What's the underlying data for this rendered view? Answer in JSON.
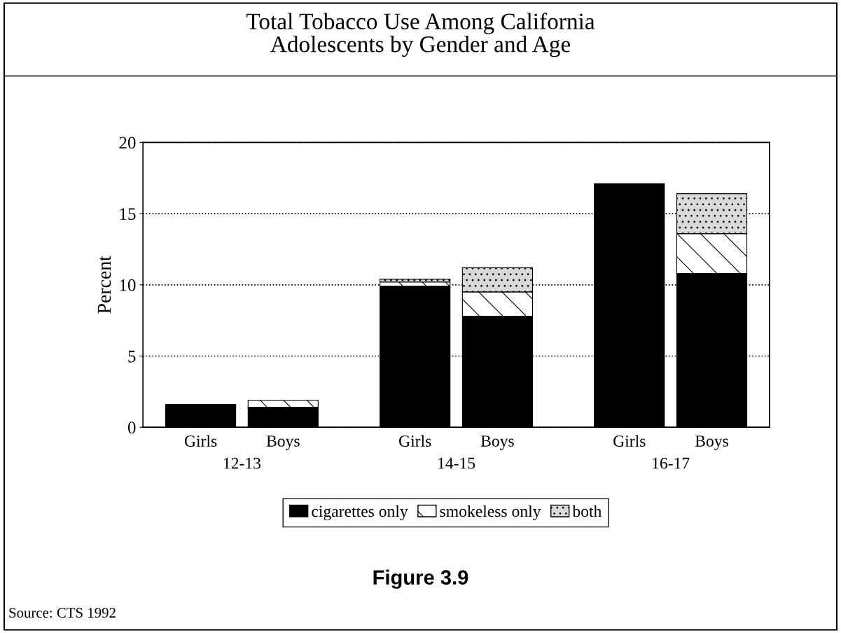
{
  "chart_data": {
    "type": "bar",
    "title": "Total Tobacco Use Among California\nAdolescents by Gender and Age",
    "ylabel": "Percent",
    "categories": [
      "Girls",
      "Boys",
      "Girls",
      "Boys",
      "Girls",
      "Boys"
    ],
    "stacked": true,
    "series": [
      {
        "name": "cigarettes only",
        "color": "#000000",
        "values": [
          1.6,
          1.4,
          9.9,
          7.8,
          17.1,
          10.8
        ]
      },
      {
        "name": "smokeless only",
        "color": "#ffffff",
        "values": [
          null,
          0.5,
          0.3,
          1.7,
          null,
          2.8
        ]
      },
      {
        "name": "both",
        "color": "#d9d9d9",
        "values": [
          null,
          null,
          0.2,
          1.7,
          null,
          2.8
        ]
      }
    ],
    "ylim": [
      0,
      20
    ],
    "yticks": [
      0,
      5,
      10,
      15,
      20
    ],
    "grid": "y",
    "legend": "bottom",
    "annotations": [
      "12-13",
      "14-15",
      "16-17",
      "Figure 3.9",
      "Source: CTS 1992"
    ]
  }
}
